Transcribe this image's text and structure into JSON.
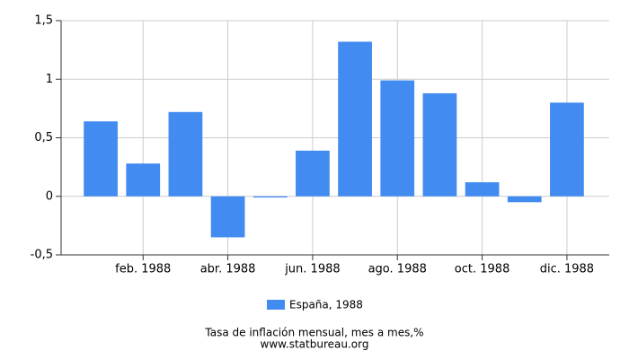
{
  "chart_data": {
    "type": "bar",
    "title": "Tasa de inflación mensual, mes a mes,%",
    "subtitle": "www.statbureau.org",
    "categories": [
      null,
      "feb. 1988",
      null,
      "abr. 1988",
      null,
      "jun. 1988",
      null,
      "ago. 1988",
      null,
      "oct. 1988",
      null,
      "dic. 1988"
    ],
    "series": [
      {
        "name": "España, 1988",
        "color": "#428bf0",
        "values": [
          0.64,
          0.28,
          0.72,
          -0.35,
          -0.01,
          0.39,
          1.32,
          0.99,
          0.88,
          0.12,
          -0.05,
          0.8
        ]
      }
    ],
    "ylim": [
      -0.5,
      1.5
    ],
    "yticks": [
      {
        "value": -0.5,
        "label": "-0,5"
      },
      0,
      {
        "value": 0.5,
        "label": "0,5"
      },
      1,
      {
        "value": 1.5,
        "label": "1,5"
      }
    ],
    "grid": true
  }
}
